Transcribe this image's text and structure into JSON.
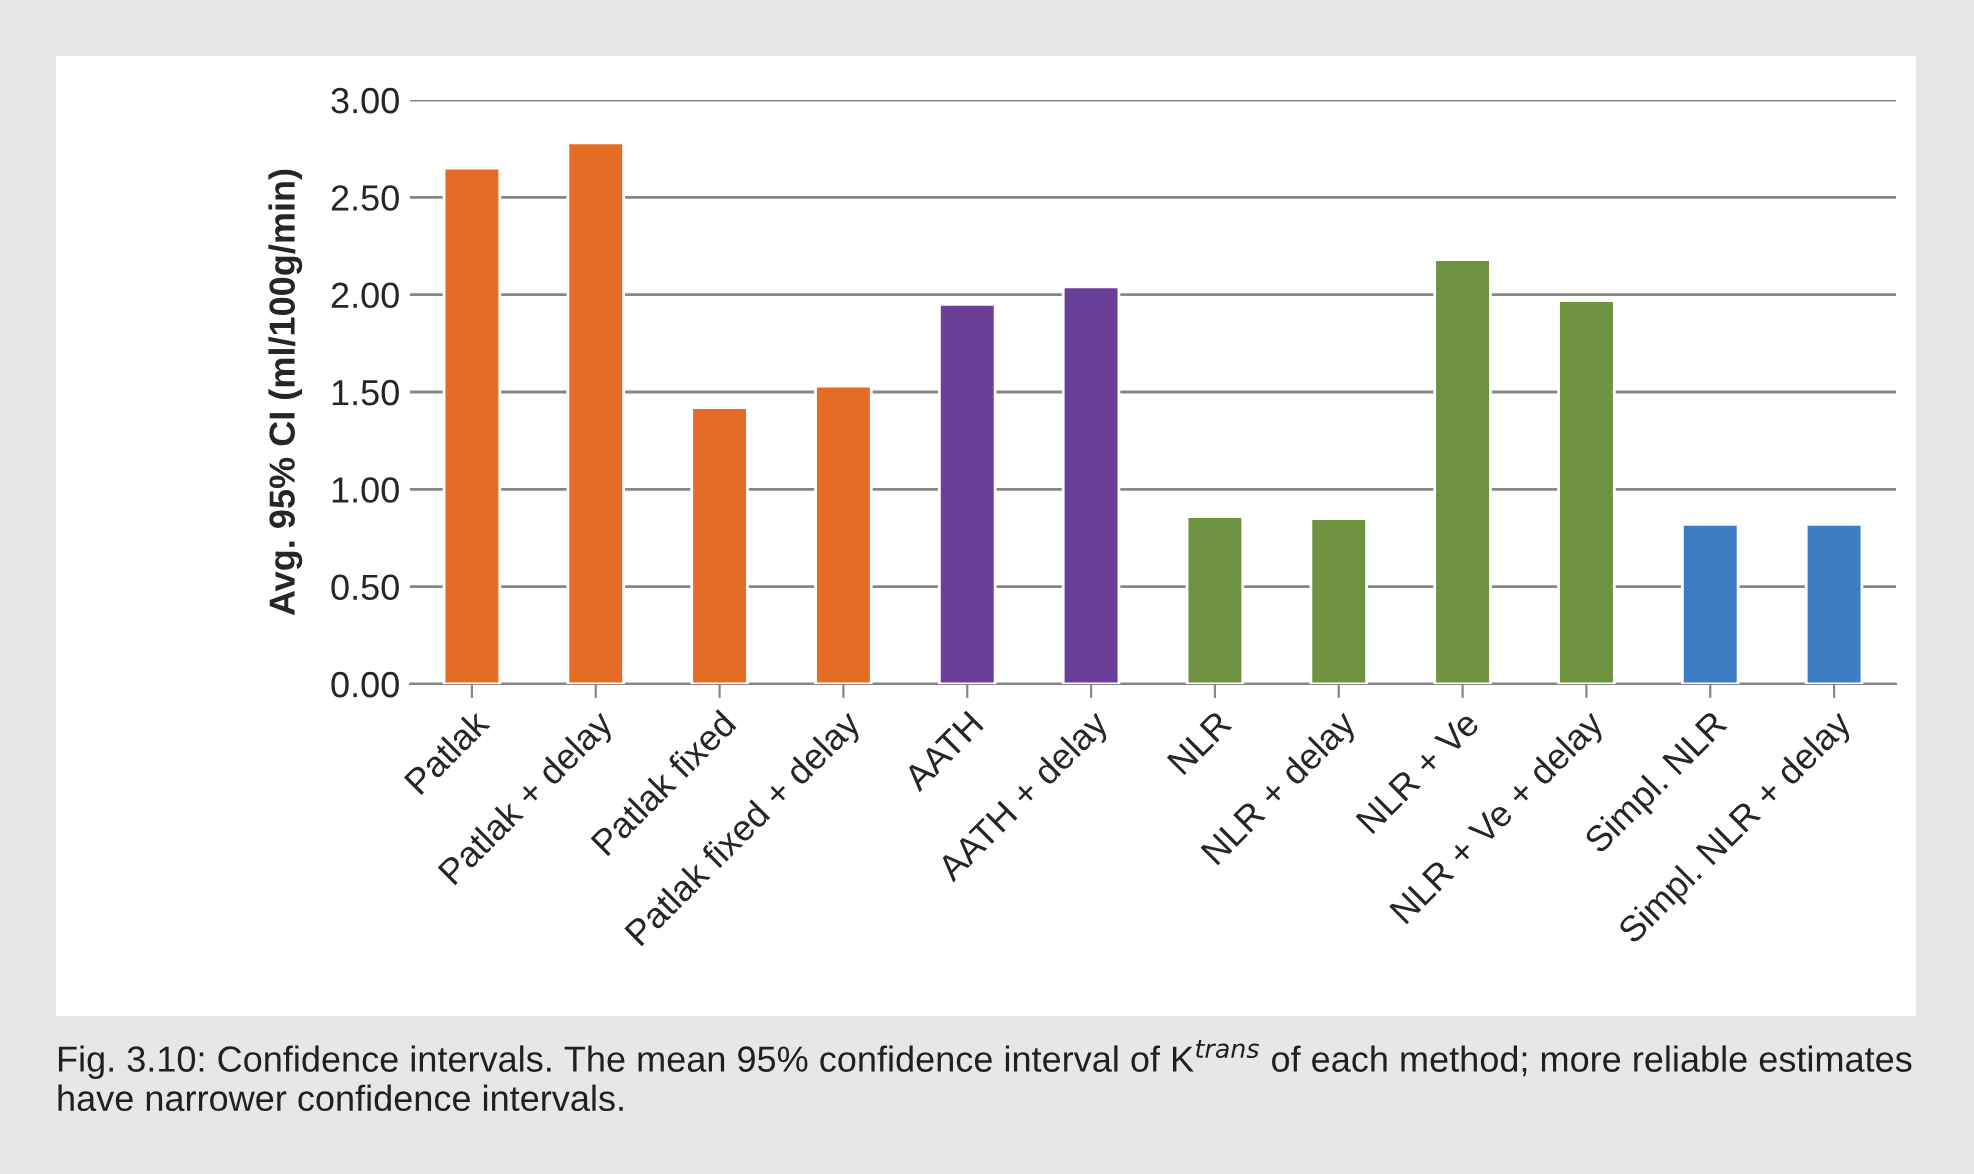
{
  "chart_data": {
    "type": "bar",
    "categories": [
      "Patlak",
      "Patlak + delay",
      "Patlak fixed",
      "Patlak fixed + delay",
      "AATH",
      "AATH + delay",
      "NLR",
      "NLR + delay",
      "NLR + Ve",
      "NLR + Ve + delay",
      "Simpl. NLR",
      "Simpl. NLR + delay"
    ],
    "values": [
      2.65,
      2.78,
      1.42,
      1.53,
      1.95,
      2.04,
      0.86,
      0.85,
      2.18,
      1.97,
      0.82,
      0.82
    ],
    "colors": [
      "#e46c24",
      "#e46c24",
      "#e46c24",
      "#e46c24",
      "#6a3f98",
      "#6a3f98",
      "#6f9240",
      "#6f9240",
      "#6f9240",
      "#6f9240",
      "#3f7dc2",
      "#3f7dc2"
    ],
    "ylabel": "Avg. 95% CI (ml/100g/min)",
    "ylim": [
      0,
      3
    ],
    "yticks": [
      {
        "value": 0,
        "label": "0.00"
      },
      {
        "value": 0.5,
        "label": "0.50"
      },
      {
        "value": 1,
        "label": "1.00"
      },
      {
        "value": 1.5,
        "label": "1.50"
      },
      {
        "value": 2,
        "label": "2.00"
      },
      {
        "value": 2.5,
        "label": "2.50"
      },
      {
        "value": 3,
        "label": "3.00"
      }
    ],
    "grid": "y",
    "legend": false,
    "annotations": [
      "Fig. 3.10: Confidence intervals. The mean 95% confidence interval of K$^{trans}$ of each method; more reliable estimates have narrower confidence intervals."
    ]
  }
}
